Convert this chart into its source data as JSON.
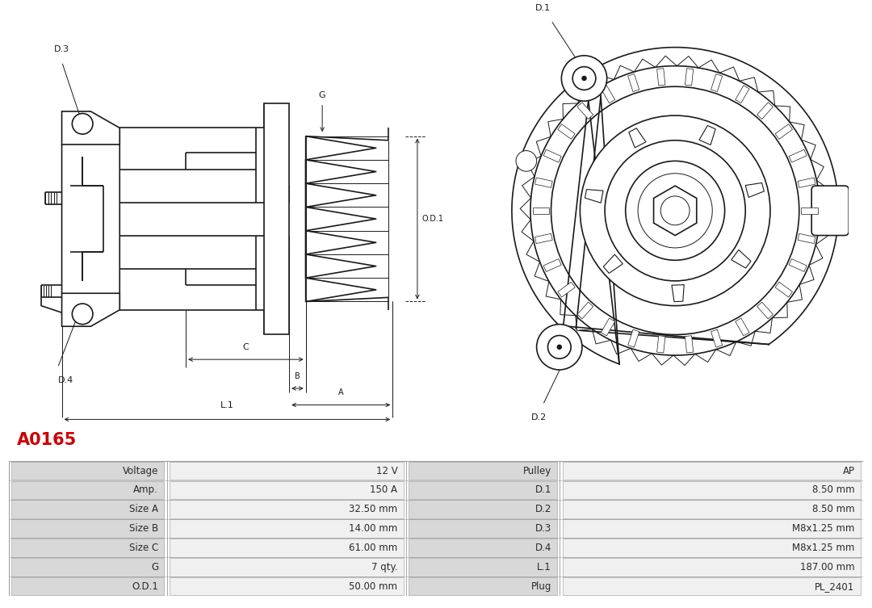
{
  "title": "A0165",
  "title_color": "#cc0000",
  "bg_color": "#ffffff",
  "table_rows": [
    [
      "Voltage",
      "12 V",
      "Pulley",
      "AP"
    ],
    [
      "Amp.",
      "150 A",
      "D.1",
      "8.50 mm"
    ],
    [
      "Size A",
      "32.50 mm",
      "D.2",
      "8.50 mm"
    ],
    [
      "Size B",
      "14.00 mm",
      "D.3",
      "M8x1.25 mm"
    ],
    [
      "Size C",
      "61.00 mm",
      "D.4",
      "M8x1.25 mm"
    ],
    [
      "G",
      "7 qty.",
      "L.1",
      "187.00 mm"
    ],
    [
      "O.D.1",
      "50.00 mm",
      "Plug",
      "PL_2401"
    ]
  ],
  "line_color": "#1a1a1a",
  "dim_color": "#1a1a1a",
  "table_bg_label": "#d8d8d8",
  "table_bg_value": "#f0f0f0",
  "table_border": "#999999"
}
